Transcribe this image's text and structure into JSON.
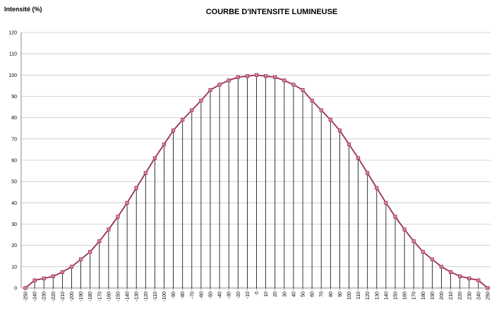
{
  "chart_data": {
    "type": "line",
    "title": "COURBE D'INTENSITE LUMINEUSE",
    "y_label": "Intensité (%)",
    "x": [
      -250,
      -240,
      -230,
      -220,
      -210,
      -200,
      -190,
      -180,
      -170,
      -160,
      -150,
      -140,
      -130,
      -120,
      -110,
      -100,
      -90,
      -80,
      -70,
      -60,
      -50,
      -40,
      -30,
      -20,
      -10,
      0,
      10,
      20,
      30,
      40,
      50,
      60,
      70,
      80,
      90,
      100,
      110,
      120,
      130,
      140,
      150,
      160,
      170,
      180,
      190,
      200,
      210,
      220,
      230,
      240,
      250
    ],
    "values": [
      0,
      3.6,
      4.5,
      5.5,
      7.5,
      10,
      13.5,
      17,
      22,
      27.5,
      33.5,
      40,
      47,
      54,
      61,
      67.5,
      74,
      79,
      83.5,
      88,
      93,
      95.5,
      97.5,
      99,
      99.5,
      100,
      99.5,
      99,
      97.5,
      95.5,
      93,
      88,
      83.5,
      79,
      74,
      67.5,
      61,
      54,
      47,
      40,
      33.5,
      27.5,
      22,
      17,
      13.5,
      10,
      7.5,
      5.5,
      4.5,
      3.6,
      0
    ],
    "color": "#9b2d5a",
    "marker_color": "#d9869f",
    "xlim": [
      -250,
      250
    ],
    "xticks": [
      -250,
      -240,
      -230,
      -220,
      -210,
      -200,
      -190,
      -180,
      -170,
      -160,
      -150,
      -140,
      -130,
      -120,
      -110,
      -100,
      -90,
      -80,
      -70,
      -60,
      -50,
      -40,
      -30,
      -20,
      -10,
      0,
      10,
      20,
      30,
      40,
      50,
      60,
      70,
      80,
      90,
      100,
      110,
      120,
      130,
      140,
      150,
      160,
      170,
      180,
      190,
      200,
      210,
      220,
      230,
      240,
      250
    ],
    "ylim": [
      0,
      120
    ],
    "yticks": [
      0,
      10,
      20,
      30,
      40,
      50,
      60,
      70,
      80,
      90,
      100,
      110,
      120
    ],
    "grid": true,
    "drop_lines": true
  }
}
